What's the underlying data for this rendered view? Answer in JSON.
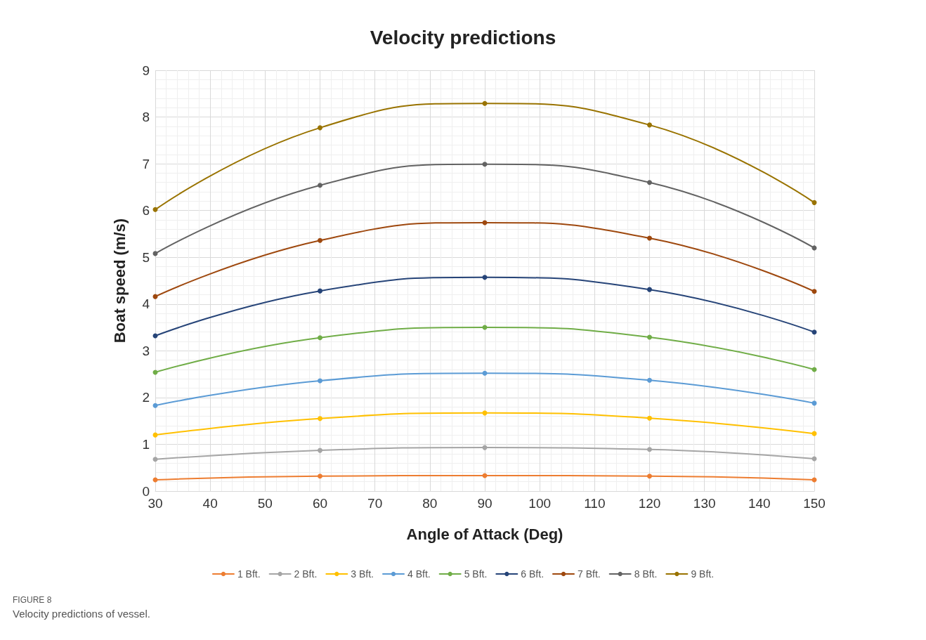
{
  "chart_data": {
    "type": "line",
    "title": "Velocity predictions",
    "xlabel": "Angle of Attack (Deg)",
    "ylabel": "Boat speed (m/s)",
    "x": [
      30,
      60,
      90,
      120,
      150
    ],
    "series": [
      {
        "name": "1 Bft.",
        "color": "#ed7d31",
        "values": [
          0.24,
          0.32,
          0.33,
          0.32,
          0.24
        ]
      },
      {
        "name": "2 Bft.",
        "color": "#a5a5a5",
        "values": [
          0.68,
          0.87,
          0.93,
          0.89,
          0.69
        ]
      },
      {
        "name": "3 Bft.",
        "color": "#ffc000",
        "values": [
          1.2,
          1.55,
          1.67,
          1.56,
          1.23
        ]
      },
      {
        "name": "4 Bft.",
        "color": "#5b9bd5",
        "values": [
          1.83,
          2.36,
          2.52,
          2.37,
          1.88
        ]
      },
      {
        "name": "5 Bft.",
        "color": "#70ad47",
        "values": [
          2.54,
          3.28,
          3.5,
          3.29,
          2.6
        ]
      },
      {
        "name": "6 Bft.",
        "color": "#264478",
        "values": [
          3.32,
          4.28,
          4.57,
          4.31,
          3.4
        ]
      },
      {
        "name": "7 Bft.",
        "color": "#9e480e",
        "values": [
          4.16,
          5.36,
          5.74,
          5.41,
          4.27
        ]
      },
      {
        "name": "8 Bft.",
        "color": "#636363",
        "values": [
          5.08,
          6.54,
          6.99,
          6.6,
          5.2
        ]
      },
      {
        "name": "9 Bft.",
        "color": "#997300",
        "values": [
          6.02,
          7.77,
          8.29,
          7.83,
          6.17
        ]
      }
    ],
    "xlim": [
      30,
      150
    ],
    "xticks": [
      30,
      40,
      50,
      60,
      70,
      80,
      90,
      100,
      110,
      120,
      130,
      140,
      150
    ],
    "ylim": [
      0,
      9
    ],
    "yticks": [
      0,
      1,
      2,
      3,
      4,
      5,
      6,
      7,
      8,
      9
    ],
    "grid": true,
    "legend": "bottom",
    "marker": "circle",
    "line_style": "solid",
    "annotations": [
      "FIGURE 8",
      "Velocity predictions of vessel."
    ]
  }
}
